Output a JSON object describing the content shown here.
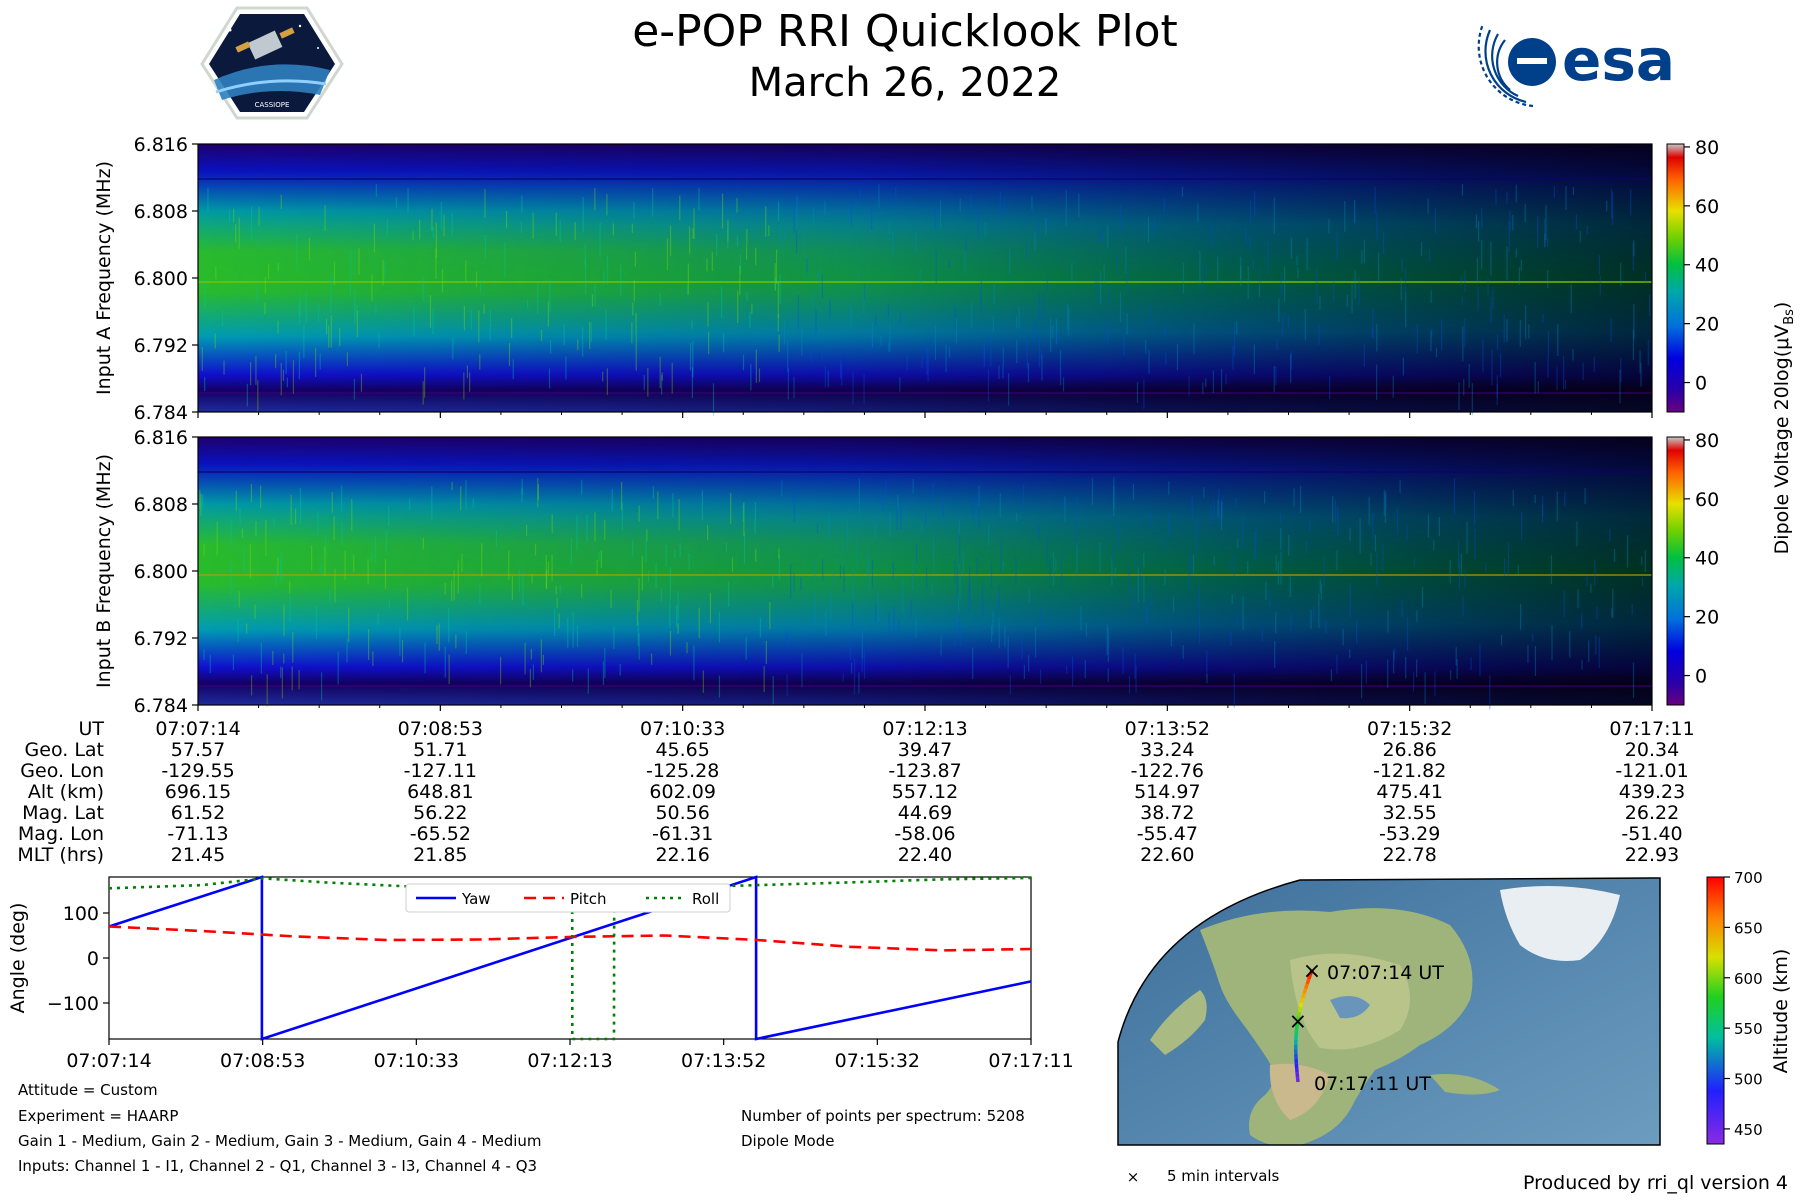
{
  "header": {
    "title": "e-POP RRI Quicklook Plot",
    "subtitle": "March 26, 2022",
    "left_logo_text": "CASSIOPE",
    "right_logo_text": "esa"
  },
  "chart_data": [
    {
      "type": "heatmap",
      "name": "spectrogram-input-a",
      "ylabel": "Input A Frequency (MHz)",
      "y_ticks": [
        "6.784",
        "6.792",
        "6.800",
        "6.808",
        "6.816"
      ],
      "ylim": [
        6.784,
        6.816
      ],
      "x_ticks": [
        "07:07:14",
        "07:08:53",
        "07:10:33",
        "07:12:13",
        "07:13:52",
        "07:15:32",
        "07:17:11"
      ],
      "colorbar": {
        "ticks": [
          "0",
          "20",
          "40",
          "60",
          "80"
        ],
        "range": [
          -10,
          81
        ]
      },
      "signal_line_mhz": 6.7999
    },
    {
      "type": "heatmap",
      "name": "spectrogram-input-b",
      "ylabel": "Input B Frequency (MHz)",
      "y_ticks": [
        "6.784",
        "6.792",
        "6.800",
        "6.808",
        "6.816"
      ],
      "ylim": [
        6.784,
        6.816
      ],
      "x_ticks": [
        "07:07:14",
        "07:08:53",
        "07:10:33",
        "07:12:13",
        "07:13:52",
        "07:15:32",
        "07:17:11"
      ],
      "colorbar": {
        "ticks": [
          "0",
          "20",
          "40",
          "60",
          "80"
        ],
        "range": [
          -10,
          81
        ]
      },
      "signal_line_mhz": 6.7999
    },
    {
      "type": "line",
      "name": "attitude",
      "ylabel": "Angle (deg)",
      "ylim": [
        -180,
        180
      ],
      "y_ticks": [
        "−100",
        "0",
        "100"
      ],
      "y_tick_values": [
        -100,
        0,
        100
      ],
      "x_ticks": [
        "07:07:14",
        "07:08:53",
        "07:10:33",
        "07:12:13",
        "07:13:52",
        "07:15:32",
        "07:17:11"
      ],
      "xlim_sec": [
        0,
        597
      ],
      "legend_placement": "top-center",
      "series": [
        {
          "name": "Yaw",
          "color": "#0000ff",
          "style": "solid",
          "x": [
            0,
            99,
            99.01,
            419,
            419.01,
            597
          ],
          "y": [
            70,
            180,
            -180,
            180,
            -180,
            -52
          ]
        },
        {
          "name": "Pitch",
          "color": "#ff0000",
          "style": "dashed",
          "x": [
            0,
            60,
            120,
            180,
            240,
            300,
            360,
            420,
            480,
            540,
            597
          ],
          "y": [
            70,
            60,
            48,
            40,
            41,
            47,
            50,
            40,
            25,
            17,
            20
          ]
        },
        {
          "name": "Roll",
          "color": "#008000",
          "style": "dotted",
          "x": [
            0,
            60,
            100,
            140,
            200,
            260,
            299.9,
            300,
            327,
            327.1,
            400,
            480,
            540,
            597
          ],
          "y": [
            155,
            162,
            177,
            168,
            158,
            158,
            158,
            -180,
            -180,
            158,
            160,
            168,
            175,
            178
          ]
        }
      ]
    },
    {
      "type": "map",
      "name": "orbit-track",
      "colorbar": {
        "label": "Altitude (km)",
        "ticks": [
          "450",
          "500",
          "550",
          "600",
          "650",
          "700"
        ],
        "range": [
          435,
          700
        ]
      },
      "start_label": "07:07:14 UT",
      "end_label": "07:17:11 UT",
      "legend": "5 min intervals"
    }
  ],
  "colorbar_label": "Dipole Voltage 20log(μV",
  "colorbar_label_sub": "Bs",
  "colorbar_label_end": ")",
  "ephemeris": {
    "labels": [
      "UT",
      "Geo. Lat",
      "Geo. Lon",
      "Alt (km)",
      "Mag. Lat",
      "Mag. Lon",
      "MLT (hrs)"
    ],
    "columns": [
      [
        "07:07:14",
        "57.57",
        "-129.55",
        "696.15",
        "61.52",
        "-71.13",
        "21.45"
      ],
      [
        "07:08:53",
        "51.71",
        "-127.11",
        "648.81",
        "56.22",
        "-65.52",
        "21.85"
      ],
      [
        "07:10:33",
        "45.65",
        "-125.28",
        "602.09",
        "50.56",
        "-61.31",
        "22.16"
      ],
      [
        "07:12:13",
        "39.47",
        "-123.87",
        "557.12",
        "44.69",
        "-58.06",
        "22.40"
      ],
      [
        "07:13:52",
        "33.24",
        "-122.76",
        "514.97",
        "38.72",
        "-55.47",
        "22.60"
      ],
      [
        "07:15:32",
        "26.86",
        "-121.82",
        "475.41",
        "32.55",
        "-53.29",
        "22.78"
      ],
      [
        "07:17:11",
        "20.34",
        "-121.01",
        "439.23",
        "26.22",
        "-51.40",
        "22.93"
      ]
    ]
  },
  "info": {
    "attitude": "Attitude = Custom",
    "experiment": "Experiment = HAARP",
    "gains": "Gain 1 - Medium, Gain 2 - Medium, Gain 3 - Medium, Gain 4 - Medium",
    "inputs": "Inputs: Channel 1 - I1, Channel 2 - Q1, Channel 3 - I3, Channel 4 - Q3",
    "points": "Number of points per spectrum: 5208",
    "mode": "Dipole Mode",
    "produced_by": "Produced by rri_ql version 4"
  }
}
